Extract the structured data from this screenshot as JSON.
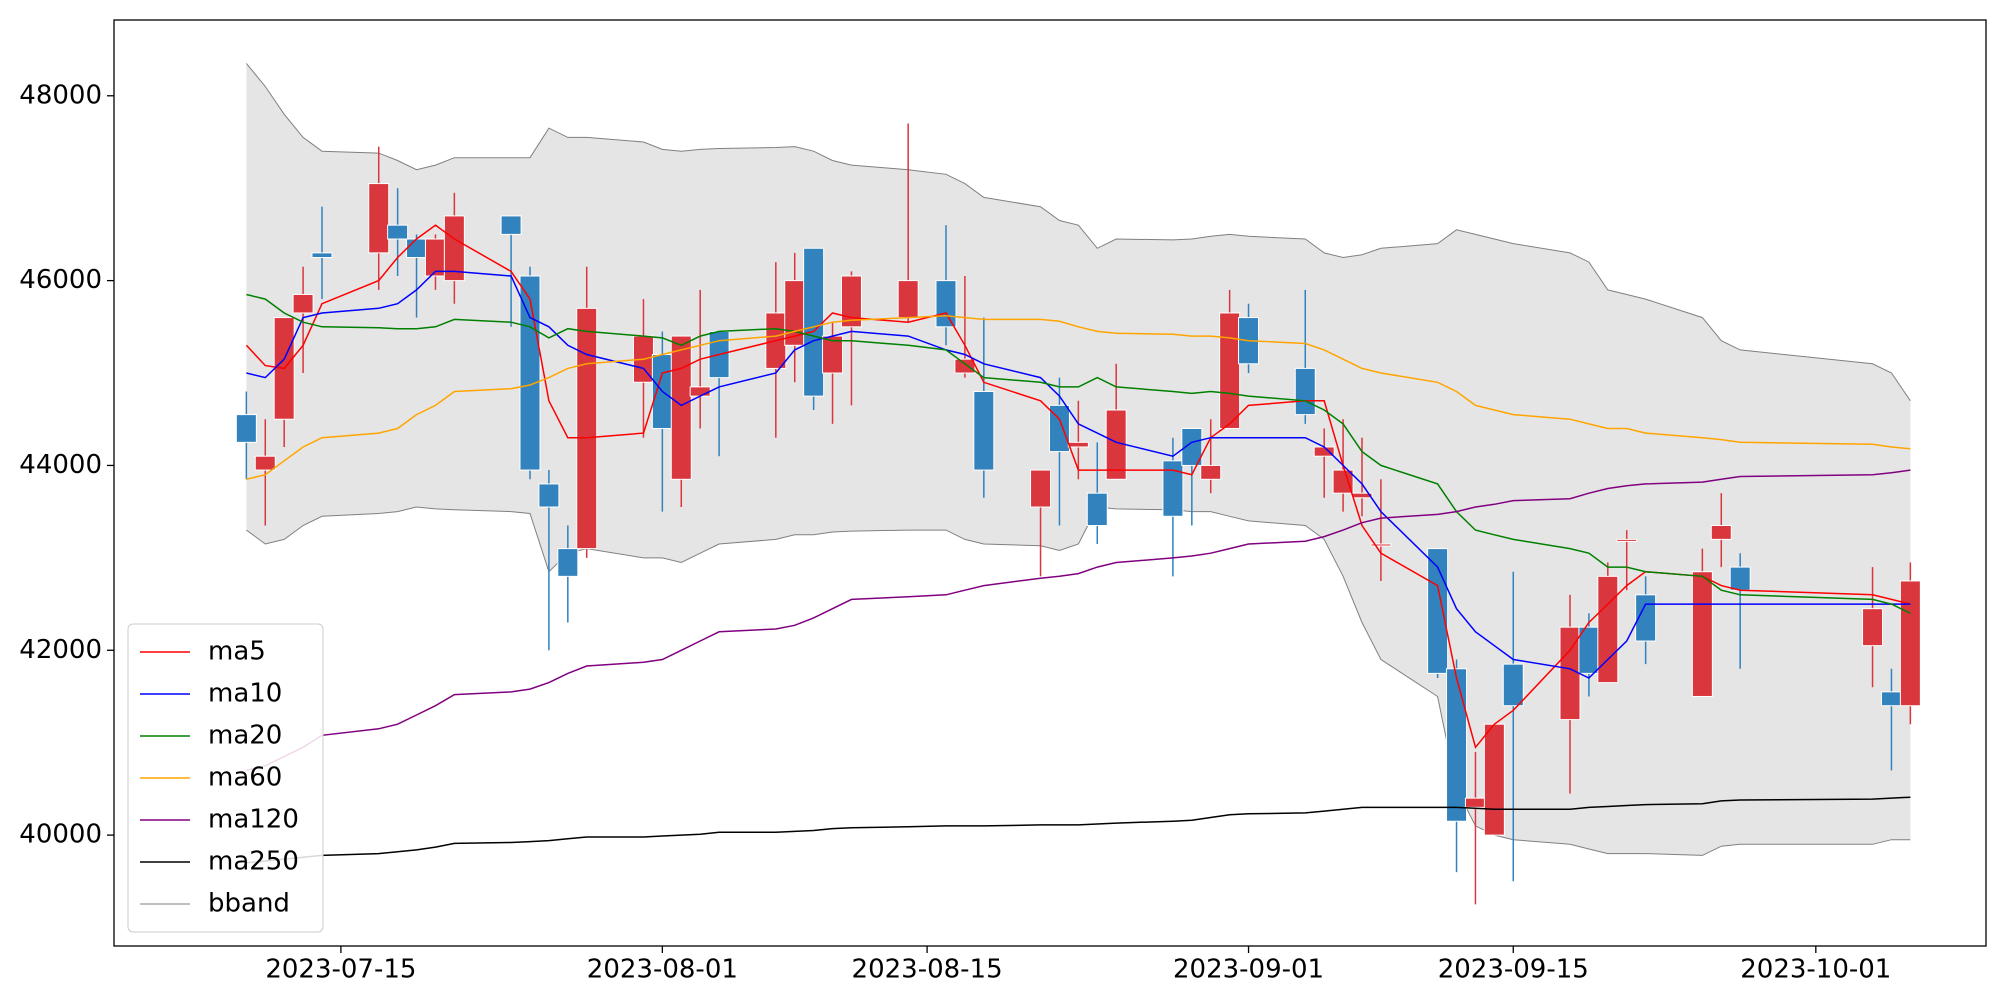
{
  "chart_data": {
    "type": "candlestick",
    "x": [
      "2023-07-10",
      "2023-07-11",
      "2023-07-12",
      "2023-07-13",
      "2023-07-14",
      "2023-07-17",
      "2023-07-18",
      "2023-07-19",
      "2023-07-20",
      "2023-07-21",
      "2023-07-24",
      "2023-07-25",
      "2023-07-26",
      "2023-07-27",
      "2023-07-28",
      "2023-07-31",
      "2023-08-01",
      "2023-08-02",
      "2023-08-03",
      "2023-08-04",
      "2023-08-07",
      "2023-08-08",
      "2023-08-09",
      "2023-08-10",
      "2023-08-11",
      "2023-08-14",
      "2023-08-16",
      "2023-08-17",
      "2023-08-18",
      "2023-08-21",
      "2023-08-22",
      "2023-08-23",
      "2023-08-24",
      "2023-08-25",
      "2023-08-28",
      "2023-08-29",
      "2023-08-30",
      "2023-08-31",
      "2023-09-01",
      "2023-09-04",
      "2023-09-05",
      "2023-09-06",
      "2023-09-07",
      "2023-09-08",
      "2023-09-11",
      "2023-09-12",
      "2023-09-13",
      "2023-09-14",
      "2023-09-15",
      "2023-09-18",
      "2023-09-19",
      "2023-09-20",
      "2023-09-21",
      "2023-09-22",
      "2023-09-25",
      "2023-09-26",
      "2023-09-27",
      "2023-10-04",
      "2023-10-05",
      "2023-10-06"
    ],
    "open": [
      44550,
      43950,
      44500,
      45650,
      46300,
      46300,
      46600,
      46450,
      46050,
      46000,
      46700,
      46050,
      43800,
      43100,
      43100,
      44900,
      45200,
      43850,
      44750,
      45450,
      45050,
      45300,
      46350,
      45000,
      45500,
      45600,
      46000,
      45000,
      44800,
      43550,
      44650,
      44200,
      43700,
      43850,
      44050,
      44400,
      43850,
      44400,
      45600,
      45050,
      44100,
      43700,
      43650,
      43150,
      43100,
      41800,
      40300,
      40000,
      41850,
      41250,
      42250,
      41650,
      43200,
      42600,
      41500,
      43200,
      42900,
      42050,
      41550,
      41400
    ],
    "high": [
      44800,
      44500,
      45600,
      46150,
      46800,
      47450,
      47000,
      46500,
      46500,
      46950,
      46700,
      46150,
      43950,
      43350,
      46150,
      45800,
      45450,
      45400,
      45900,
      45450,
      46200,
      46300,
      46350,
      45550,
      46100,
      47700,
      46600,
      46050,
      45600,
      43950,
      44950,
      44700,
      44250,
      45100,
      44300,
      44400,
      44500,
      45900,
      45750,
      45900,
      44400,
      44500,
      44300,
      43850,
      43100,
      41900,
      40900,
      41200,
      42850,
      42600,
      42400,
      42950,
      43300,
      42800,
      43100,
      43700,
      43050,
      42900,
      41800,
      42950
    ],
    "low": [
      43850,
      43350,
      44200,
      45000,
      45800,
      45900,
      46050,
      45600,
      45900,
      45750,
      45500,
      43850,
      42000,
      42300,
      43000,
      44300,
      43500,
      43550,
      44400,
      44100,
      44300,
      44900,
      44600,
      44450,
      44650,
      45550,
      45300,
      44950,
      43650,
      42800,
      43350,
      43850,
      43150,
      43850,
      42800,
      43350,
      43700,
      44400,
      45000,
      44450,
      43650,
      43500,
      43450,
      42750,
      41700,
      39600,
      39250,
      40000,
      39500,
      40450,
      41500,
      41650,
      42650,
      41850,
      41500,
      42900,
      41800,
      41600,
      40700,
      41200
    ],
    "close": [
      44250,
      44100,
      45600,
      45850,
      46250,
      47050,
      46450,
      46250,
      46450,
      46700,
      46500,
      43950,
      43550,
      42800,
      45700,
      45400,
      44400,
      45400,
      44850,
      44950,
      45650,
      46000,
      44750,
      45400,
      46050,
      46000,
      45500,
      45150,
      43950,
      43950,
      44150,
      44250,
      43350,
      44600,
      43450,
      44000,
      44000,
      45650,
      45100,
      44550,
      44200,
      43950,
      43700,
      43150,
      41750,
      40150,
      40400,
      41200,
      41400,
      42250,
      41750,
      42800,
      43200,
      42100,
      42850,
      43350,
      42650,
      42450,
      41400,
      42750
    ],
    "series": [
      {
        "name": "ma5",
        "color": "#ff0000",
        "values": [
          45300,
          45080,
          45050,
          45300,
          45750,
          46000,
          46250,
          46450,
          46600,
          46450,
          46100,
          45800,
          44700,
          44300,
          44300,
          44350,
          45000,
          45050,
          45150,
          45200,
          45350,
          45400,
          45450,
          45650,
          45600,
          45550,
          45650,
          45300,
          44900,
          44700,
          44500,
          43950,
          43950,
          43950,
          43950,
          43900,
          44300,
          44450,
          44650,
          44700,
          44700,
          44000,
          43350,
          43050,
          42700,
          41700,
          40950,
          41200,
          41350,
          42000,
          42300,
          42500,
          42700,
          42850,
          42800,
          42700,
          42650,
          42600,
          42550,
          42500
        ]
      },
      {
        "name": "ma10",
        "color": "#0000ff",
        "values": [
          45000,
          44950,
          45150,
          45600,
          45650,
          45700,
          45750,
          45900,
          46100,
          46100,
          46050,
          45600,
          45500,
          45300,
          45200,
          45050,
          44800,
          44650,
          44750,
          44850,
          45000,
          45250,
          45350,
          45400,
          45450,
          45400,
          45250,
          45200,
          45100,
          44950,
          44750,
          44450,
          44350,
          44250,
          44100,
          44250,
          44300,
          44300,
          44300,
          44300,
          44200,
          44000,
          43800,
          43500,
          42900,
          42450,
          42200,
          42050,
          41900,
          41800,
          41700,
          41900,
          42100,
          42500,
          42500,
          42500,
          42500,
          42500,
          42500,
          42500
        ]
      },
      {
        "name": "ma20",
        "color": "#008000",
        "values": [
          45850,
          45800,
          45650,
          45550,
          45500,
          45490,
          45480,
          45480,
          45500,
          45580,
          45550,
          45500,
          45380,
          45480,
          45450,
          45400,
          45380,
          45300,
          45400,
          45450,
          45480,
          45450,
          45400,
          45350,
          45350,
          45300,
          45250,
          45100,
          44950,
          44900,
          44850,
          44850,
          44950,
          44850,
          44800,
          44780,
          44800,
          44780,
          44750,
          44700,
          44600,
          44450,
          44150,
          44000,
          43800,
          43500,
          43300,
          43250,
          43200,
          43100,
          43050,
          42900,
          42900,
          42850,
          42800,
          42650,
          42600,
          42550,
          42500,
          42400
        ]
      },
      {
        "name": "ma60",
        "color": "#ffa500",
        "values": [
          43850,
          43900,
          44050,
          44200,
          44300,
          44350,
          44400,
          44550,
          44650,
          44800,
          44830,
          44870,
          44950,
          45050,
          45100,
          45150,
          45200,
          45250,
          45300,
          45350,
          45400,
          45450,
          45500,
          45550,
          45570,
          45600,
          45620,
          45600,
          45580,
          45580,
          45560,
          45500,
          45450,
          45430,
          45420,
          45400,
          45400,
          45380,
          45350,
          45320,
          45250,
          45150,
          45050,
          45000,
          44900,
          44800,
          44650,
          44600,
          44550,
          44500,
          44450,
          44400,
          44400,
          44350,
          44300,
          44280,
          44250,
          44230,
          44200,
          44180
        ]
      },
      {
        "name": "ma120",
        "color": "#800080",
        "values": [
          40700,
          40750,
          40850,
          40950,
          41080,
          41150,
          41200,
          41300,
          41400,
          41520,
          41550,
          41580,
          41650,
          41750,
          41830,
          41870,
          41900,
          42000,
          42100,
          42200,
          42230,
          42270,
          42350,
          42450,
          42550,
          42580,
          42600,
          42650,
          42700,
          42780,
          42800,
          42830,
          42900,
          42950,
          43000,
          43020,
          43050,
          43100,
          43150,
          43180,
          43230,
          43300,
          43380,
          43430,
          43470,
          43500,
          43550,
          43580,
          43620,
          43640,
          43700,
          43750,
          43780,
          43800,
          43820,
          43850,
          43880,
          43900,
          43920,
          43950
        ]
      },
      {
        "name": "ma250",
        "color": "#000000",
        "values": [
          39700,
          39720,
          39740,
          39760,
          39780,
          39800,
          39820,
          39840,
          39870,
          39910,
          39920,
          39930,
          39940,
          39960,
          39980,
          39980,
          39990,
          40000,
          40010,
          40030,
          40030,
          40040,
          40050,
          40070,
          40080,
          40090,
          40100,
          40100,
          40100,
          40110,
          40110,
          40110,
          40120,
          40130,
          40150,
          40160,
          40190,
          40220,
          40230,
          40240,
          40260,
          40280,
          40300,
          40300,
          40300,
          40300,
          40290,
          40280,
          40280,
          40280,
          40300,
          40310,
          40320,
          40330,
          40340,
          40370,
          40380,
          40390,
          40400,
          40410
        ]
      },
      {
        "name": "bband",
        "color": "#808080",
        "upper": [
          48350,
          48100,
          47800,
          47550,
          47400,
          47380,
          47300,
          47200,
          47250,
          47330,
          47330,
          47330,
          47650,
          47550,
          47550,
          47500,
          47420,
          47400,
          47420,
          47430,
          47440,
          47450,
          47400,
          47300,
          47250,
          47200,
          47150,
          47050,
          46900,
          46800,
          46650,
          46600,
          46350,
          46450,
          46440,
          46450,
          46480,
          46500,
          46480,
          46450,
          46300,
          46250,
          46280,
          46350,
          46400,
          46550,
          46500,
          46450,
          46400,
          46300,
          46200,
          45900,
          45850,
          45800,
          45600,
          45350,
          45250,
          45100,
          45000,
          44700
        ],
        "lower": [
          43300,
          43150,
          43200,
          43350,
          43450,
          43480,
          43500,
          43550,
          43530,
          43520,
          43500,
          43480,
          42850,
          43050,
          43100,
          43000,
          43000,
          42950,
          43050,
          43150,
          43200,
          43250,
          43250,
          43280,
          43290,
          43300,
          43300,
          43200,
          43150,
          43130,
          43080,
          43150,
          43550,
          43530,
          43520,
          43500,
          43500,
          43450,
          43400,
          43350,
          43200,
          42800,
          42300,
          41900,
          41500,
          40500,
          40100,
          40000,
          39950,
          39900,
          39850,
          39800,
          39800,
          39800,
          39780,
          39880,
          39900,
          39900,
          39950,
          39950
        ]
      }
    ],
    "up_color": "#d9363e",
    "down_color": "#3182bd",
    "band_fill": "#e5e5e5",
    "xlim": [
      "2023-07-03",
      "2023-10-10"
    ],
    "xticks": [
      "2023-07-15",
      "2023-08-01",
      "2023-08-15",
      "2023-09-01",
      "2023-09-15",
      "2023-10-01"
    ],
    "ylim": [
      38800,
      48820
    ],
    "yticks": [
      40000,
      42000,
      44000,
      46000,
      48000
    ],
    "grid": false,
    "legend": "lower left"
  }
}
